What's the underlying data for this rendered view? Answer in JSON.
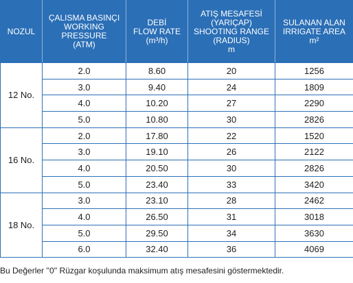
{
  "header": {
    "nozul": "NOZUL",
    "pressure": [
      "ÇALISMA BASINÇI",
      "WORKING PRESSURE",
      "(ATM)"
    ],
    "flow": [
      "DEBİ",
      "FLOW RATE",
      "(m³/h)"
    ],
    "range": [
      "ATIŞ MESAFESİ",
      "(YARIÇAP)",
      "SHOOTING RANGE",
      "(RADIUS)",
      "m"
    ],
    "area": [
      "SULANAN ALAN",
      "IRRIGATE AREA",
      "m²"
    ]
  },
  "groups": [
    {
      "nozul": "12 No.",
      "rows": [
        {
          "pressure": "2.0",
          "flow": "8.60",
          "range": "20",
          "area": "1256"
        },
        {
          "pressure": "3.0",
          "flow": "9.40",
          "range": "24",
          "area": "1809"
        },
        {
          "pressure": "4.0",
          "flow": "10.20",
          "range": "27",
          "area": "2290"
        },
        {
          "pressure": "5.0",
          "flow": "10.80",
          "range": "30",
          "area": "2826"
        }
      ]
    },
    {
      "nozul": "16 No.",
      "rows": [
        {
          "pressure": "2.0",
          "flow": "17.80",
          "range": "22",
          "area": "1520"
        },
        {
          "pressure": "3.0",
          "flow": "19.10",
          "range": "26",
          "area": "2122"
        },
        {
          "pressure": "4.0",
          "flow": "20.50",
          "range": "30",
          "area": "2826"
        },
        {
          "pressure": "5.0",
          "flow": "23.40",
          "range": "33",
          "area": "3420"
        }
      ]
    },
    {
      "nozul": "18 No.",
      "rows": [
        {
          "pressure": "3.0",
          "flow": "23.10",
          "range": "28",
          "area": "2462"
        },
        {
          "pressure": "4.0",
          "flow": "26.50",
          "range": "31",
          "area": "3018"
        },
        {
          "pressure": "5.0",
          "flow": "29.50",
          "range": "34",
          "area": "3630"
        },
        {
          "pressure": "6.0",
          "flow": "32.40",
          "range": "36",
          "area": "4069"
        }
      ]
    }
  ],
  "footnote": "Bu Değerler ''0'' Rüzgar koşulunda maksimum atış mesafesini göstermektedir.",
  "colors": {
    "header_bg": "#2b6fb6",
    "border": "#2b6fb6",
    "text": "#1d1d1b"
  }
}
